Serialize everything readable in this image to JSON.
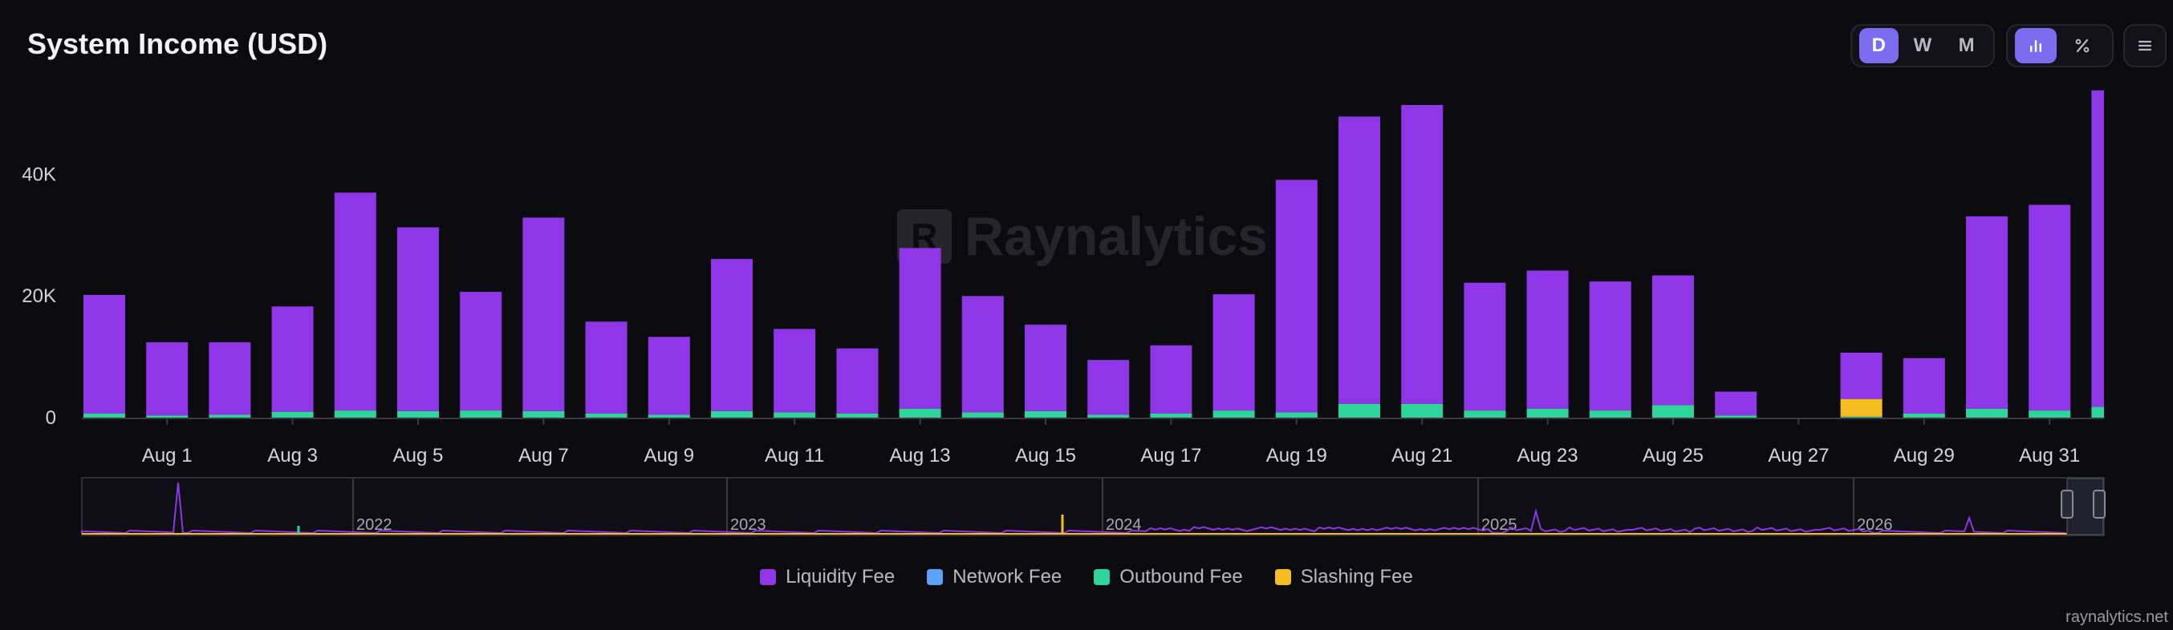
{
  "header": {
    "title": "System Income (USD)",
    "period_buttons": [
      "D",
      "W",
      "M"
    ],
    "active_period": "D"
  },
  "watermark": "Raynalytics",
  "footer": "raynalytics.net",
  "colors": {
    "liquidity": "#8e36e8",
    "network": "#5ba4f5",
    "outbound": "#2fd49a",
    "slashing": "#f5bd22",
    "accent": "#7c6cf0"
  },
  "chart_data": {
    "type": "bar",
    "stacked": true,
    "title": "System Income (USD)",
    "categories": [
      "Jul 31",
      "Aug 1",
      "Aug 2",
      "Aug 3",
      "Aug 4",
      "Aug 5",
      "Aug 6",
      "Aug 7",
      "Aug 8",
      "Aug 9",
      "Aug 10",
      "Aug 11",
      "Aug 12",
      "Aug 13",
      "Aug 14",
      "Aug 15",
      "Aug 16",
      "Aug 17",
      "Aug 18",
      "Aug 19",
      "Aug 20",
      "Aug 21",
      "Aug 22",
      "Aug 23",
      "Aug 24",
      "Aug 25",
      "Aug 26",
      "Aug 27",
      "Aug 28",
      "Aug 29",
      "Aug 30",
      "Aug 31",
      "Sep 1"
    ],
    "x_tick_labels": [
      "Aug 1",
      "Aug 3",
      "Aug 5",
      "Aug 7",
      "Aug 9",
      "Aug 11",
      "Aug 13",
      "Aug 15",
      "Aug 17",
      "Aug 19",
      "Aug 21",
      "Aug 23",
      "Aug 25",
      "Aug 27",
      "Aug 29",
      "Aug 31"
    ],
    "y_ticks": [
      0,
      20000,
      40000
    ],
    "y_tick_labels": [
      "0",
      "20K",
      "40K"
    ],
    "ylim": [
      0,
      54000
    ],
    "series": [
      {
        "name": "Liquidity Fee",
        "color": "#8e36e8",
        "values": [
          19500,
          12000,
          11900,
          17300,
          35800,
          30200,
          19500,
          31800,
          15100,
          12800,
          25000,
          13700,
          10700,
          26400,
          19100,
          14200,
          9000,
          11200,
          19100,
          38200,
          47200,
          49100,
          21000,
          22700,
          21200,
          21300,
          3900,
          0,
          7600,
          9100,
          31600,
          33800,
          52000
        ]
      },
      {
        "name": "Network Fee",
        "color": "#5ba4f5",
        "values": [
          0,
          0,
          0,
          0,
          0,
          0,
          0,
          0,
          0,
          0,
          0,
          0,
          0,
          0,
          0,
          0,
          0,
          0,
          0,
          0,
          0,
          0,
          0,
          0,
          0,
          0,
          0,
          0,
          0,
          0,
          0,
          0,
          0
        ]
      },
      {
        "name": "Outbound Fee",
        "color": "#2fd49a",
        "values": [
          800,
          500,
          600,
          1100,
          1300,
          1200,
          1300,
          1200,
          800,
          600,
          1200,
          1000,
          800,
          1600,
          1000,
          1200,
          600,
          800,
          1300,
          1000,
          2400,
          2400,
          1300,
          1600,
          1300,
          2200,
          500,
          0,
          300,
          800,
          1600,
          1300,
          1900
        ]
      },
      {
        "name": "Slashing Fee",
        "color": "#f5bd22",
        "values": [
          0,
          0,
          0,
          0,
          0,
          0,
          0,
          0,
          0,
          0,
          0,
          0,
          0,
          0,
          0,
          0,
          0,
          0,
          0,
          0,
          0,
          0,
          0,
          0,
          0,
          0,
          0,
          0,
          2900,
          0,
          0,
          0,
          0
        ]
      }
    ],
    "legend": {
      "position": "bottom",
      "entries": [
        "Liquidity Fee",
        "Network Fee",
        "Outbound Fee",
        "Slashing Fee"
      ]
    },
    "grid": false,
    "navigator": {
      "year_labels": [
        "2022",
        "2023",
        "2024",
        "2025",
        "2026"
      ]
    }
  }
}
